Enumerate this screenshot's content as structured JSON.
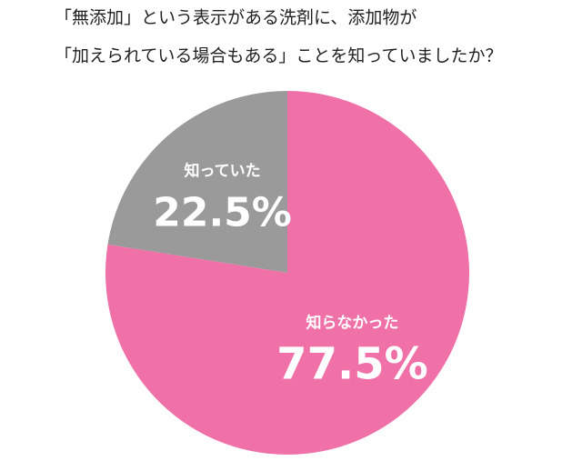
{
  "chart_data": {
    "type": "pie",
    "title": [
      "「無添加」という表示がある洗剤に、添加物が",
      "「加えられている場合もある」ことを知っていましたか？"
    ],
    "categories": [
      "知らなかった",
      "知っていた"
    ],
    "values": [
      77.5,
      22.5
    ],
    "value_labels": [
      "77.5%",
      "22.5%"
    ],
    "colors": [
      "#f070a8",
      "#9a9a9a"
    ]
  }
}
